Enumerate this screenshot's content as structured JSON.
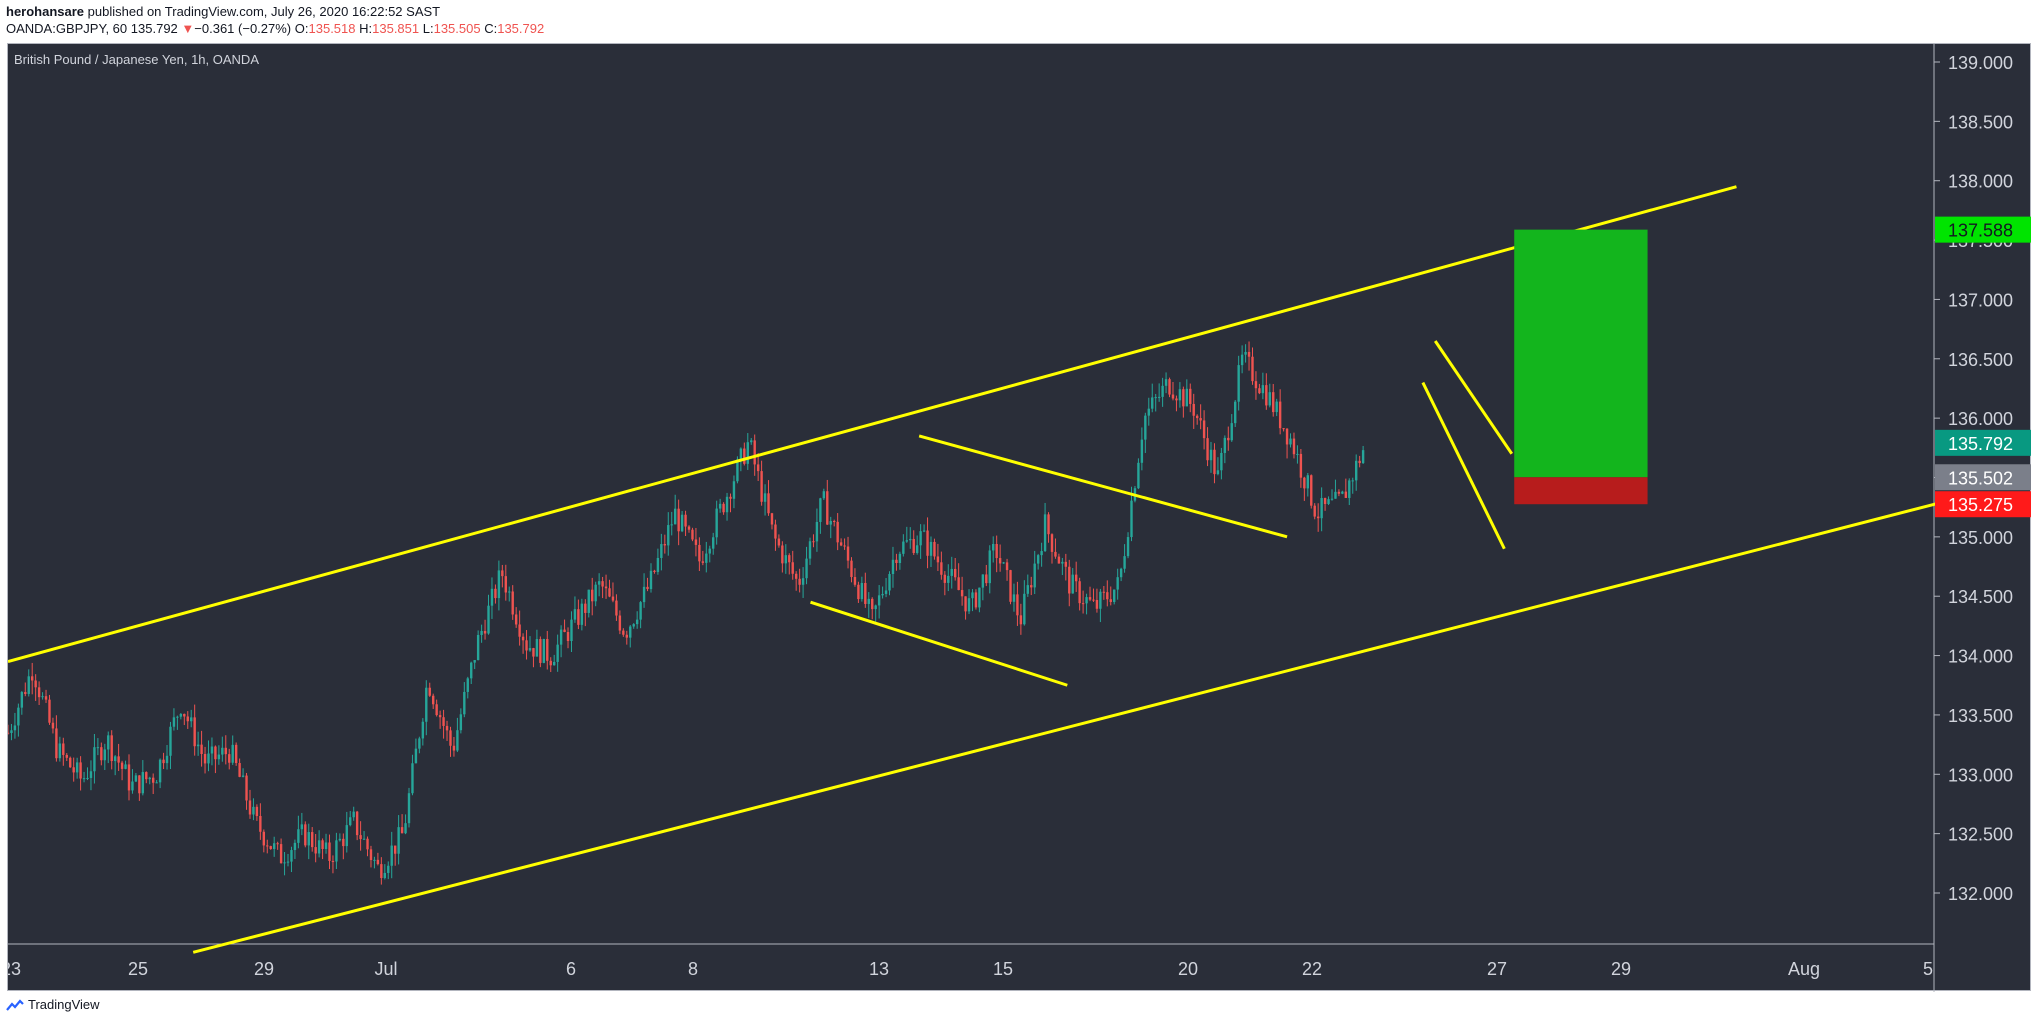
{
  "header": {
    "publisher": "herohansare",
    "published_text": "published on TradingView.com, July 26, 2020 16:22:52 SAST",
    "symbol": "OANDA:GBPJPY, 60",
    "last": "135.792",
    "change": "−0.361 (−0.27%)",
    "o_label": "O:",
    "o": "135.518",
    "h_label": "H:",
    "h": "135.851",
    "l_label": "L:",
    "l": "135.505",
    "c_label": "C:",
    "c": "135.792"
  },
  "footer": {
    "brand": "TradingView"
  },
  "colors": {
    "background": "#2a2e39",
    "up": "#26a69a",
    "down": "#ef5350",
    "trendline": "#ffff00",
    "target": "#13b51d",
    "stop": "#b71c1c"
  },
  "chart_data": {
    "type": "candlestick",
    "title": "British Pound / Japanese Yen, 1h, OANDA",
    "xlabel": "",
    "ylabel": "",
    "x_ticks": [
      "23",
      "25",
      "29",
      "Jul",
      "6",
      "8",
      "13",
      "15",
      "20",
      "22",
      "27",
      "29",
      "Aug",
      "5"
    ],
    "y_ticks": [
      "132.000",
      "132.500",
      "133.000",
      "133.500",
      "134.000",
      "134.500",
      "135.000",
      "135.500",
      "136.000",
      "136.500",
      "137.000",
      "137.500",
      "138.000",
      "138.500",
      "139.000"
    ],
    "ylim": [
      131.6,
      139.3
    ],
    "price_path": [
      [
        0,
        133.35
      ],
      [
        1,
        133.9
      ],
      [
        2,
        133.2
      ],
      [
        3,
        132.95
      ],
      [
        4,
        133.3
      ],
      [
        5,
        132.9
      ],
      [
        6,
        133.0
      ],
      [
        7,
        133.6
      ],
      [
        8,
        133.1
      ],
      [
        9,
        133.2
      ],
      [
        10,
        132.6
      ],
      [
        11,
        132.3
      ],
      [
        12,
        132.5
      ],
      [
        13,
        132.3
      ],
      [
        14,
        132.6
      ],
      [
        15,
        132.2
      ],
      [
        16,
        132.5
      ],
      [
        17,
        133.8
      ],
      [
        18,
        133.2
      ],
      [
        19,
        134.1
      ],
      [
        20,
        134.7
      ],
      [
        21,
        134.1
      ],
      [
        22,
        134.0
      ],
      [
        23,
        134.3
      ],
      [
        24,
        134.6
      ],
      [
        25,
        134.2
      ],
      [
        26,
        134.6
      ],
      [
        27,
        135.2
      ],
      [
        28,
        134.8
      ],
      [
        29,
        135.3
      ],
      [
        30,
        135.8
      ],
      [
        31,
        135.0
      ],
      [
        32,
        134.6
      ],
      [
        33,
        135.3
      ],
      [
        34,
        134.8
      ],
      [
        35,
        134.3
      ],
      [
        36,
        134.9
      ],
      [
        37,
        135.0
      ],
      [
        38,
        134.7
      ],
      [
        39,
        134.4
      ],
      [
        40,
        134.9
      ],
      [
        41,
        134.3
      ],
      [
        42,
        135.1
      ],
      [
        43,
        134.6
      ],
      [
        44,
        134.4
      ],
      [
        45,
        134.6
      ],
      [
        46,
        136.0
      ],
      [
        47,
        136.3
      ],
      [
        48,
        136.1
      ],
      [
        49,
        135.5
      ],
      [
        50,
        136.5
      ],
      [
        51,
        136.2
      ],
      [
        52,
        135.8
      ],
      [
        53,
        135.2
      ],
      [
        54,
        135.3
      ],
      [
        55,
        135.792
      ]
    ],
    "annotations": {
      "channel_upper": [
        [
          0,
          133.95
        ],
        [
          70,
          137.95
        ]
      ],
      "channel_lower": [
        [
          7.5,
          131.5
        ],
        [
          79.8,
          135.37
        ]
      ],
      "flag_upper": [
        [
          36.9,
          135.85
        ],
        [
          51.8,
          135.0
        ]
      ],
      "flag_lower": [
        [
          32.5,
          134.45
        ],
        [
          42.9,
          133.75
        ]
      ],
      "wedge_upper": [
        [
          57.8,
          136.65
        ],
        [
          60.9,
          135.7
        ]
      ],
      "wedge_lower": [
        [
          57.3,
          136.3
        ],
        [
          60.6,
          134.9
        ]
      ]
    },
    "position": {
      "entry": 135.502,
      "target": 137.588,
      "stop": 135.275,
      "x_start": 61.0,
      "x_end": 66.4
    },
    "price_labels": [
      {
        "value": 137.588,
        "text": "137.588",
        "color": "#00e400",
        "text_color": "#131722"
      },
      {
        "value": 135.792,
        "text": "135.792",
        "color": "#089981",
        "text_color": "#ffffff"
      },
      {
        "value": 135.502,
        "text": "135.502",
        "color": "#7b7f8a",
        "text_color": "#ffffff"
      },
      {
        "value": 135.275,
        "text": "135.275",
        "color": "#ff1a1a",
        "text_color": "#ffffff"
      }
    ]
  }
}
